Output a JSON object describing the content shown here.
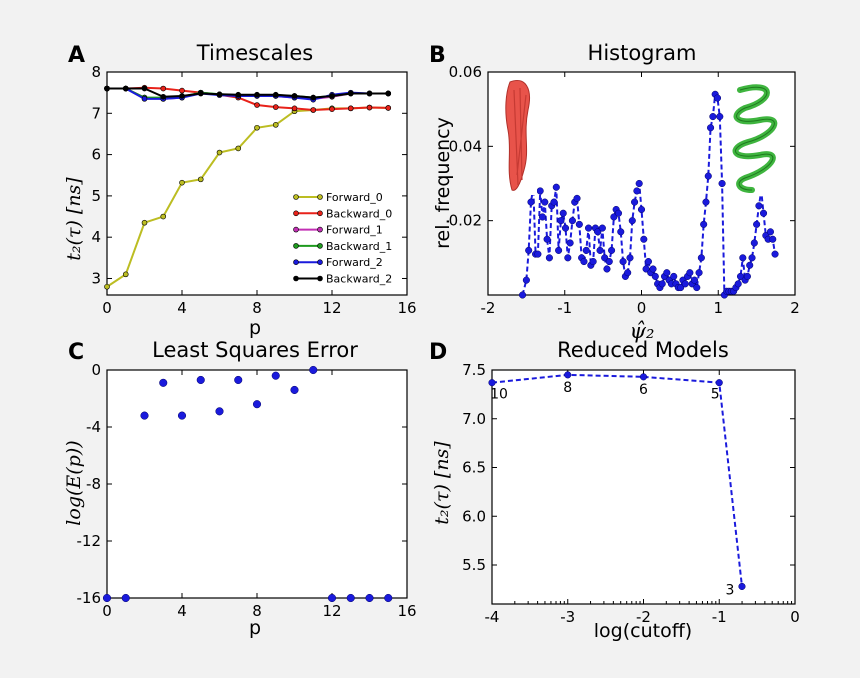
{
  "panels": {
    "A": {
      "letter": "A",
      "title": "Timescales",
      "ylabel": "t₂(τ) [ns]",
      "xlabel": "p",
      "xlim": [
        0,
        16
      ],
      "ylim": [
        2.6,
        8
      ],
      "xticks": [
        0,
        4,
        8,
        12,
        16
      ],
      "yticks": [
        3,
        4,
        5,
        6,
        7,
        8
      ],
      "legend_position": "lower-right",
      "series": [
        {
          "name": "Forward_0",
          "color": "#bcbd22",
          "x": [
            0,
            1,
            2,
            3,
            4,
            5,
            6,
            7,
            8,
            9,
            10,
            11,
            12,
            13,
            14,
            15
          ],
          "y": [
            2.8,
            3.1,
            4.35,
            4.5,
            5.32,
            5.4,
            6.05,
            6.15,
            6.65,
            6.72,
            7.05,
            7.08,
            7.12,
            7.12,
            7.14,
            7.13
          ]
        },
        {
          "name": "Backward_0",
          "color": "#e8221a",
          "x": [
            0,
            1,
            2,
            3,
            4,
            5,
            6,
            7,
            8,
            9,
            10,
            11,
            12,
            13,
            14,
            15
          ],
          "y": [
            7.6,
            7.6,
            7.62,
            7.6,
            7.55,
            7.5,
            7.45,
            7.38,
            7.2,
            7.15,
            7.12,
            7.08,
            7.1,
            7.12,
            7.14,
            7.13
          ]
        },
        {
          "name": "Forward_1",
          "color": "#c22fb4",
          "x": [
            0,
            1,
            2,
            3,
            4,
            5,
            6,
            7,
            8,
            9,
            10,
            11,
            12,
            13,
            14,
            15
          ],
          "y": [
            7.6,
            7.6,
            7.38,
            7.35,
            7.38,
            7.5,
            7.45,
            7.42,
            7.42,
            7.42,
            7.38,
            7.35,
            7.4,
            7.48,
            7.48,
            7.48
          ]
        },
        {
          "name": "Backward_1",
          "color": "#1e9a1e",
          "x": [
            0,
            1,
            2,
            3,
            4,
            5,
            6,
            7,
            8,
            9,
            10,
            11,
            12,
            13,
            14,
            15
          ],
          "y": [
            7.6,
            7.6,
            7.38,
            7.38,
            7.4,
            7.5,
            7.46,
            7.44,
            7.44,
            7.44,
            7.42,
            7.38,
            7.42,
            7.48,
            7.48,
            7.48
          ]
        },
        {
          "name": "Forward_2",
          "color": "#1a1adc",
          "x": [
            0,
            1,
            2,
            3,
            4,
            5,
            6,
            7,
            8,
            9,
            10,
            11,
            12,
            13,
            14,
            15
          ],
          "y": [
            7.6,
            7.6,
            7.35,
            7.35,
            7.38,
            7.48,
            7.44,
            7.42,
            7.42,
            7.42,
            7.38,
            7.33,
            7.45,
            7.5,
            7.48,
            7.48
          ]
        },
        {
          "name": "Backward_2",
          "color": "#000000",
          "x": [
            0,
            1,
            2,
            3,
            4,
            5,
            6,
            7,
            8,
            9,
            10,
            11,
            12,
            13,
            14,
            15
          ],
          "y": [
            7.6,
            7.6,
            7.6,
            7.4,
            7.42,
            7.48,
            7.46,
            7.45,
            7.45,
            7.45,
            7.42,
            7.38,
            7.42,
            7.48,
            7.48,
            7.48
          ]
        }
      ]
    },
    "B": {
      "letter": "B",
      "title": "Histogram",
      "ylabel": "rel. frequency",
      "xlabel": "ψ̂₂",
      "xlim": [
        -2,
        2
      ],
      "ylim": [
        0,
        0.06
      ],
      "xticks": [
        -2,
        -1,
        0,
        1,
        2
      ],
      "yticks": [
        0.02,
        0.04,
        0.06
      ],
      "ytick_labels": [
        "0.02",
        "0.04",
        "0.06"
      ],
      "color": "#1a1adc",
      "x": [
        -1.55,
        -1.5,
        -1.47,
        -1.44,
        -1.41,
        -1.38,
        -1.35,
        -1.32,
        -1.29,
        -1.26,
        -1.23,
        -1.2,
        -1.17,
        -1.14,
        -1.11,
        -1.08,
        -1.05,
        -1.02,
        -0.99,
        -0.96,
        -0.93,
        -0.9,
        -0.87,
        -0.84,
        -0.81,
        -0.78,
        -0.75,
        -0.72,
        -0.69,
        -0.66,
        -0.63,
        -0.6,
        -0.57,
        -0.54,
        -0.51,
        -0.48,
        -0.45,
        -0.42,
        -0.39,
        -0.36,
        -0.33,
        -0.3,
        -0.27,
        -0.24,
        -0.21,
        -0.18,
        -0.15,
        -0.12,
        -0.09,
        -0.06,
        -0.03,
        0.0,
        0.03,
        0.06,
        0.09,
        0.12,
        0.15,
        0.18,
        0.21,
        0.24,
        0.27,
        0.3,
        0.33,
        0.36,
        0.39,
        0.42,
        0.45,
        0.48,
        0.51,
        0.54,
        0.57,
        0.6,
        0.63,
        0.66,
        0.69,
        0.72,
        0.75,
        0.78,
        0.81,
        0.84,
        0.87,
        0.9,
        0.93,
        0.96,
        0.99,
        1.02,
        1.05,
        1.08,
        1.11,
        1.14,
        1.17,
        1.2,
        1.23,
        1.26,
        1.29,
        1.32,
        1.35,
        1.38,
        1.41,
        1.44,
        1.47,
        1.5,
        1.53,
        1.56,
        1.59,
        1.62,
        1.65,
        1.68,
        1.71,
        1.74
      ],
      "y": [
        0.0,
        0.004,
        0.012,
        0.025,
        0.029,
        0.011,
        0.011,
        0.028,
        0.021,
        0.025,
        0.015,
        0.01,
        0.024,
        0.025,
        0.029,
        0.012,
        0.02,
        0.022,
        0.018,
        0.01,
        0.014,
        0.02,
        0.025,
        0.026,
        0.019,
        0.01,
        0.009,
        0.012,
        0.018,
        0.008,
        0.009,
        0.018,
        0.017,
        0.012,
        0.018,
        0.01,
        0.007,
        0.009,
        0.012,
        0.021,
        0.023,
        0.022,
        0.017,
        0.009,
        0.005,
        0.006,
        0.01,
        0.02,
        0.025,
        0.028,
        0.03,
        0.023,
        0.015,
        0.007,
        0.009,
        0.006,
        0.007,
        0.005,
        0.003,
        0.002,
        0.003,
        0.005,
        0.006,
        0.004,
        0.003,
        0.005,
        0.003,
        0.002,
        0.002,
        0.004,
        0.003,
        0.005,
        0.006,
        0.003,
        0.004,
        0.002,
        0.006,
        0.01,
        0.019,
        0.025,
        0.032,
        0.045,
        0.048,
        0.054,
        0.053,
        0.048,
        0.03,
        0.0,
        0.001,
        0.001,
        0.001,
        0.001,
        0.002,
        0.003,
        0.005,
        0.01,
        0.004,
        0.005,
        0.008,
        0.01,
        0.014,
        0.019,
        0.024,
        0.028,
        0.022,
        0.016,
        0.015,
        0.017,
        0.015,
        0.011
      ]
    },
    "C": {
      "letter": "C",
      "title": "Least Squares Error",
      "ylabel": "log(E(p))",
      "xlabel": "p",
      "xlim": [
        0,
        16
      ],
      "ylim": [
        -16,
        0
      ],
      "xticks": [
        0,
        4,
        8,
        12,
        16
      ],
      "yticks": [
        0,
        -4,
        -8,
        -12,
        -16
      ],
      "color": "#1a1adc",
      "x": [
        0,
        1,
        2,
        3,
        4,
        5,
        6,
        7,
        8,
        9,
        10,
        11,
        12,
        13,
        14,
        15
      ],
      "y": [
        -16,
        -16,
        -3.2,
        -0.9,
        -3.2,
        -0.7,
        -2.9,
        -0.7,
        -2.4,
        -0.4,
        -1.4,
        0.0,
        -16,
        -16,
        -16,
        -16
      ]
    },
    "D": {
      "letter": "D",
      "title": "Reduced Models",
      "ylabel": "t₂(τ) [ns]",
      "xlabel": "log(cutoff)",
      "xlim": [
        -4,
        0
      ],
      "ylim": [
        5.1,
        7.5
      ],
      "xticks": [
        -4,
        -3,
        -2,
        -1,
        0
      ],
      "yticks": [
        5.5,
        6.0,
        6.5,
        7.0,
        7.5
      ],
      "ytick_labels": [
        "5.5",
        "6.0",
        "6.5",
        "7.0",
        "7.5"
      ],
      "color": "#1a1adc",
      "x": [
        -4,
        -3,
        -2,
        -1,
        -0.7
      ],
      "y": [
        7.37,
        7.45,
        7.43,
        7.37,
        5.28
      ],
      "point_labels": [
        "10",
        "8",
        "6",
        "5",
        "3"
      ]
    }
  }
}
